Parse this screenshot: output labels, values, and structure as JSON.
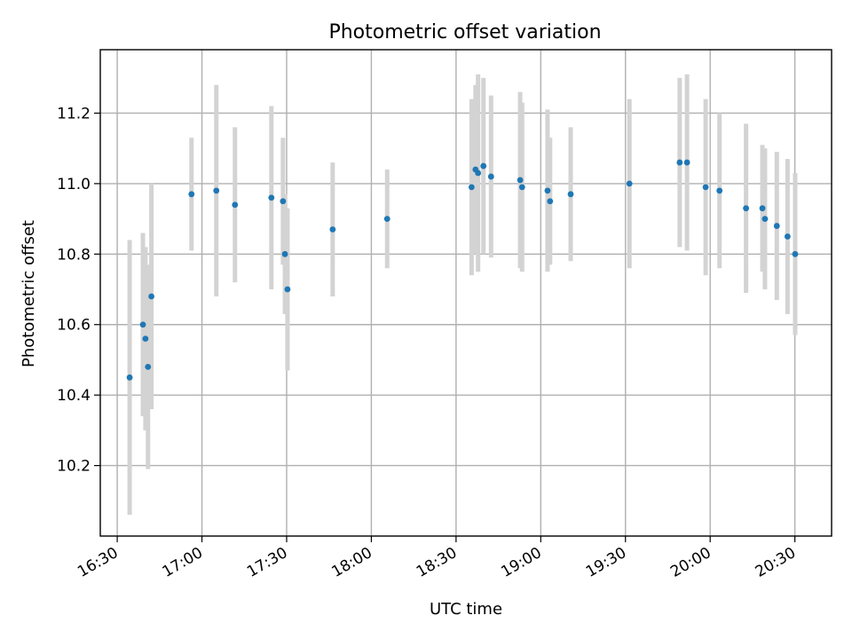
{
  "chart_data": {
    "type": "scatter",
    "title": "Photometric offset variation",
    "xlabel": "UTC time",
    "ylabel": "Photometric offset",
    "x_is_time": true,
    "xlim": [
      "16:24",
      "20:43"
    ],
    "ylim": [
      10.0,
      11.38
    ],
    "x_ticks": [
      "16:30",
      "17:00",
      "17:30",
      "18:00",
      "18:30",
      "19:00",
      "19:30",
      "20:00",
      "20:30"
    ],
    "y_ticks": [
      10.2,
      10.4,
      10.6,
      10.8,
      11.0,
      11.2
    ],
    "y_tick_labels": [
      "10.2",
      "10.4",
      "10.6",
      "10.8",
      "11.0",
      "11.2"
    ],
    "grid": true,
    "colors": {
      "point": "#1f77b4",
      "errorbar": "#d3d3d3",
      "grid": "#b0b0b0"
    },
    "points": [
      {
        "x": "16:34.4",
        "y": 10.45,
        "err": 0.39
      },
      {
        "x": "16:39.1",
        "y": 10.6,
        "err": 0.26
      },
      {
        "x": "16:40.0",
        "y": 10.56,
        "err": 0.26
      },
      {
        "x": "16:40.9",
        "y": 10.48,
        "err": 0.29
      },
      {
        "x": "16:42.1",
        "y": 10.68,
        "err": 0.32
      },
      {
        "x": "16:56.3",
        "y": 10.97,
        "err": 0.16
      },
      {
        "x": "17:05.1",
        "y": 10.98,
        "err": 0.3
      },
      {
        "x": "17:11.7",
        "y": 10.94,
        "err": 0.22
      },
      {
        "x": "17:24.6",
        "y": 10.96,
        "err": 0.26
      },
      {
        "x": "17:28.7",
        "y": 10.95,
        "err": 0.18
      },
      {
        "x": "17:29.4",
        "y": 10.8,
        "err": 0.17
      },
      {
        "x": "17:30.3",
        "y": 10.7,
        "err": 0.23
      },
      {
        "x": "17:46.3",
        "y": 10.87,
        "err": 0.19
      },
      {
        "x": "18:05.6",
        "y": 10.9,
        "err": 0.14
      },
      {
        "x": "18:35.5",
        "y": 10.99,
        "err": 0.25
      },
      {
        "x": "18:36.9",
        "y": 11.04,
        "err": 0.24
      },
      {
        "x": "18:37.8",
        "y": 11.03,
        "err": 0.28
      },
      {
        "x": "18:39.7",
        "y": 11.05,
        "err": 0.25
      },
      {
        "x": "18:42.4",
        "y": 11.02,
        "err": 0.23
      },
      {
        "x": "18:52.7",
        "y": 11.01,
        "err": 0.25
      },
      {
        "x": "18:53.4",
        "y": 10.99,
        "err": 0.24
      },
      {
        "x": "19:02.4",
        "y": 10.98,
        "err": 0.23
      },
      {
        "x": "19:03.3",
        "y": 10.95,
        "err": 0.18
      },
      {
        "x": "19:10.6",
        "y": 10.97,
        "err": 0.19
      },
      {
        "x": "19:31.4",
        "y": 11.0,
        "err": 0.24
      },
      {
        "x": "19:49.2",
        "y": 11.06,
        "err": 0.24
      },
      {
        "x": "19:51.8",
        "y": 11.06,
        "err": 0.25
      },
      {
        "x": "19:58.4",
        "y": 10.99,
        "err": 0.25
      },
      {
        "x": "20:03.3",
        "y": 10.98,
        "err": 0.22
      },
      {
        "x": "20:12.7",
        "y": 10.93,
        "err": 0.24
      },
      {
        "x": "20:18.5",
        "y": 10.93,
        "err": 0.18
      },
      {
        "x": "20:19.4",
        "y": 10.9,
        "err": 0.2
      },
      {
        "x": "20:23.6",
        "y": 10.88,
        "err": 0.21
      },
      {
        "x": "20:27.4",
        "y": 10.85,
        "err": 0.22
      },
      {
        "x": "20:30.1",
        "y": 10.8,
        "err": 0.23
      }
    ]
  }
}
